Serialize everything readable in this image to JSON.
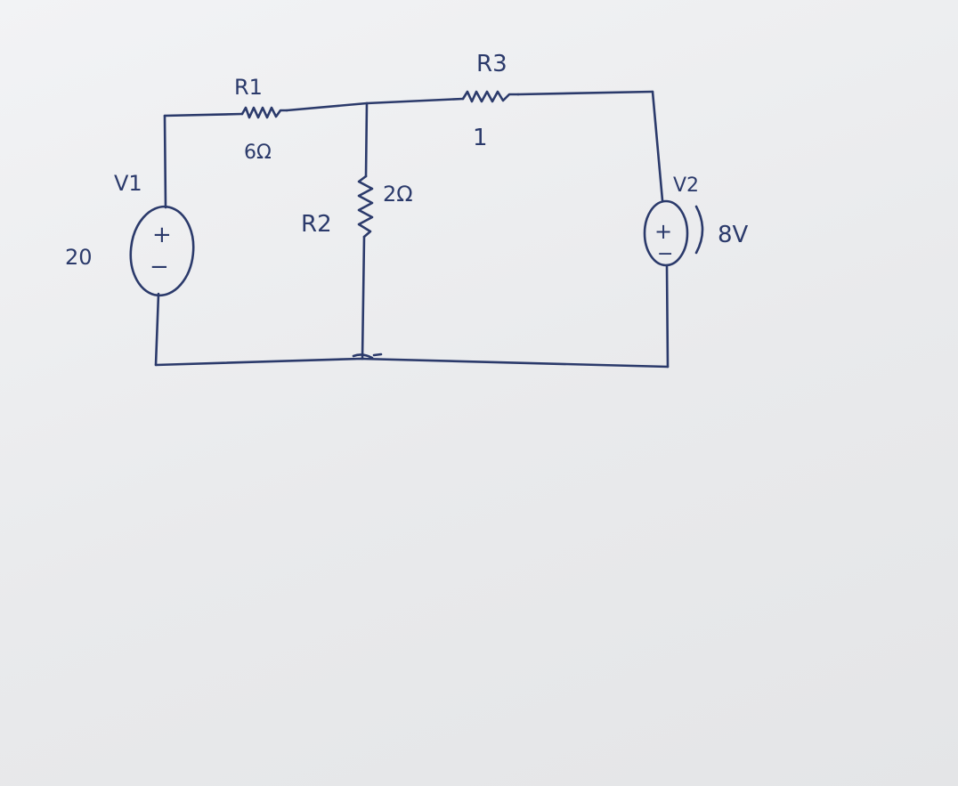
{
  "ink_color": "#2b3a6b",
  "paper_color": "#eceef0",
  "components": {
    "r1": {
      "name": "R1",
      "value": "6Ω"
    },
    "r2": {
      "name": "R2",
      "value": "2Ω"
    },
    "r3": {
      "name": "R3",
      "value": "1"
    },
    "v1": {
      "name": "V1",
      "value": "20",
      "plus": "+",
      "minus": "−"
    },
    "v2": {
      "name": "V2",
      "value": "8V",
      "plus": "+",
      "minus": "−"
    }
  }
}
